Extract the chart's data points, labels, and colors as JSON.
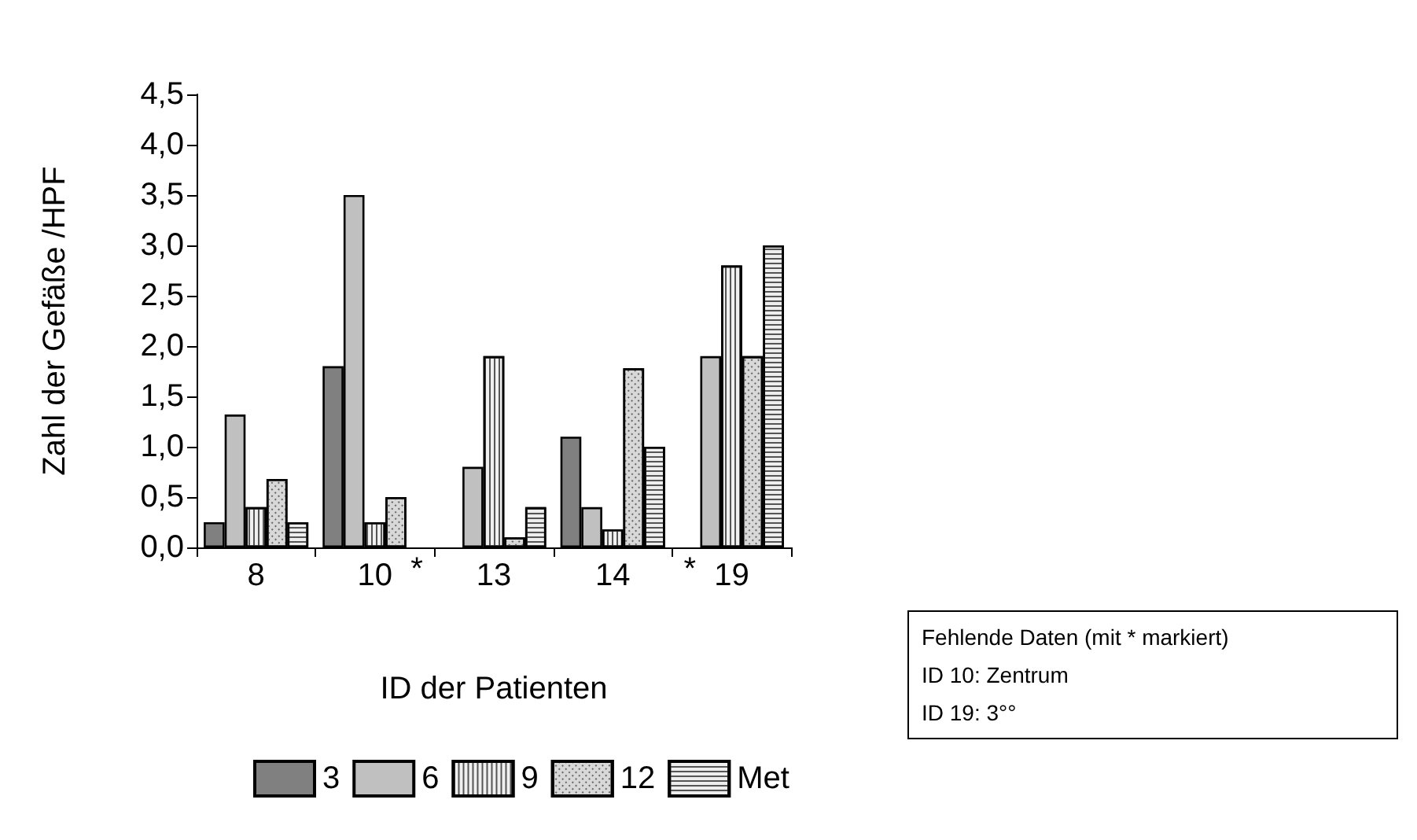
{
  "chart_data": {
    "type": "bar",
    "xlabel": "ID der Patienten",
    "ylabel": "Zahl der Gefäße /HPF",
    "categories": [
      "8",
      "10",
      "13",
      "14",
      "19"
    ],
    "series": [
      {
        "name": "3",
        "color": "#808080",
        "values": [
          0.25,
          1.8,
          null,
          1.1,
          null
        ]
      },
      {
        "name": "6",
        "color": "#c0c0c0",
        "values": [
          1.32,
          3.5,
          0.8,
          0.4,
          1.9
        ]
      },
      {
        "name": "9",
        "color": "#f0f0f0",
        "values": [
          0.4,
          0.25,
          1.9,
          0.18,
          2.8
        ]
      },
      {
        "name": "12",
        "color": "#d8d8d8",
        "values": [
          0.68,
          0.5,
          0.1,
          1.78,
          1.9
        ]
      },
      {
        "name": "Met",
        "color": "#eeeeee",
        "values": [
          0.25,
          null,
          0.4,
          1.0,
          3.0
        ]
      }
    ],
    "ylim": [
      0,
      4.5
    ],
    "yticks": [
      {
        "value": 0,
        "label": "0,0"
      },
      {
        "value": 0.5,
        "label": "0,5"
      },
      {
        "value": 1,
        "label": "1,0"
      },
      {
        "value": 1.5,
        "label": "1,5"
      },
      {
        "value": 2,
        "label": "2,0"
      },
      {
        "value": 2.5,
        "label": "2,5"
      },
      {
        "value": 3,
        "label": "3,0"
      },
      {
        "value": 3.5,
        "label": "3,5"
      },
      {
        "value": 4,
        "label": "4,0"
      },
      {
        "value": 4.5,
        "label": "4,5"
      }
    ],
    "annotations": [
      {
        "text": "*",
        "x": "10",
        "y": 0
      },
      {
        "text": "*",
        "x": "19",
        "y": 0
      },
      "Fehlende Daten (mit * markiert)",
      "ID 10: Zentrum",
      "ID 19: 3°°"
    ],
    "legend": "bottom left",
    "grid": false
  }
}
